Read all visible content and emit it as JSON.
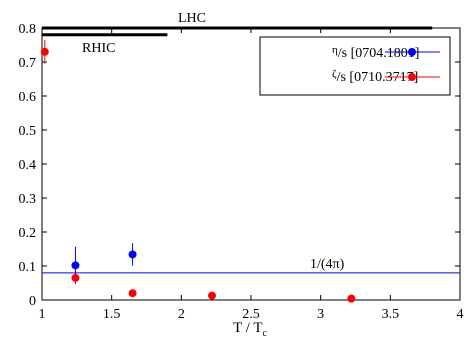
{
  "chart_data": {
    "type": "scatter",
    "title": "",
    "xlabel": "T / T",
    "xlabel_sub": "c",
    "ylabel": "",
    "xlim": [
      1,
      4
    ],
    "ylim": [
      0,
      0.8
    ],
    "x_ticks": [
      1,
      1.5,
      2,
      2.5,
      3,
      3.5,
      4
    ],
    "x_tick_labels": [
      "1",
      "1.5",
      "2",
      "2.5",
      "3",
      "3.5",
      "4"
    ],
    "y_ticks": [
      0,
      0.1,
      0.2,
      0.3,
      0.4,
      0.5,
      0.6,
      0.7,
      0.8
    ],
    "y_tick_labels": [
      "0",
      "0.1",
      "0.2",
      "0.3",
      "0.4",
      "0.5",
      "0.6",
      "0.7",
      "0.8"
    ],
    "grid": false,
    "legend_position": "top-right",
    "series": [
      {
        "name_symbol": "η",
        "name_rest": "/s [0704.1801]",
        "color": "#0000ff",
        "points": [
          {
            "x": 1.24,
            "y": 0.102,
            "err": 0.055
          },
          {
            "x": 1.65,
            "y": 0.134,
            "err": 0.033
          }
        ]
      },
      {
        "name_symbol": "ζ",
        "name_rest": "/s [0710.3717]",
        "color": "#ff0000",
        "points": [
          {
            "x": 1.02,
            "y": 0.73,
            "err": 0.035
          },
          {
            "x": 1.24,
            "y": 0.065,
            "err": 0.012
          },
          {
            "x": 1.65,
            "y": 0.02,
            "err": 0.0
          },
          {
            "x": 2.22,
            "y": 0.013,
            "err": 0.0
          },
          {
            "x": 3.22,
            "y": 0.004,
            "err": 0.0
          }
        ]
      }
    ],
    "reference_line": {
      "y": 0.0796,
      "label": "1/(4π)",
      "color": "#0000ff"
    },
    "ranges": [
      {
        "label": "RHIC",
        "x_start": 1.0,
        "x_end": 1.9,
        "y": 0.78
      },
      {
        "label": "LHC",
        "x_start": 1.0,
        "x_end": 3.8,
        "y": 0.8
      }
    ]
  }
}
